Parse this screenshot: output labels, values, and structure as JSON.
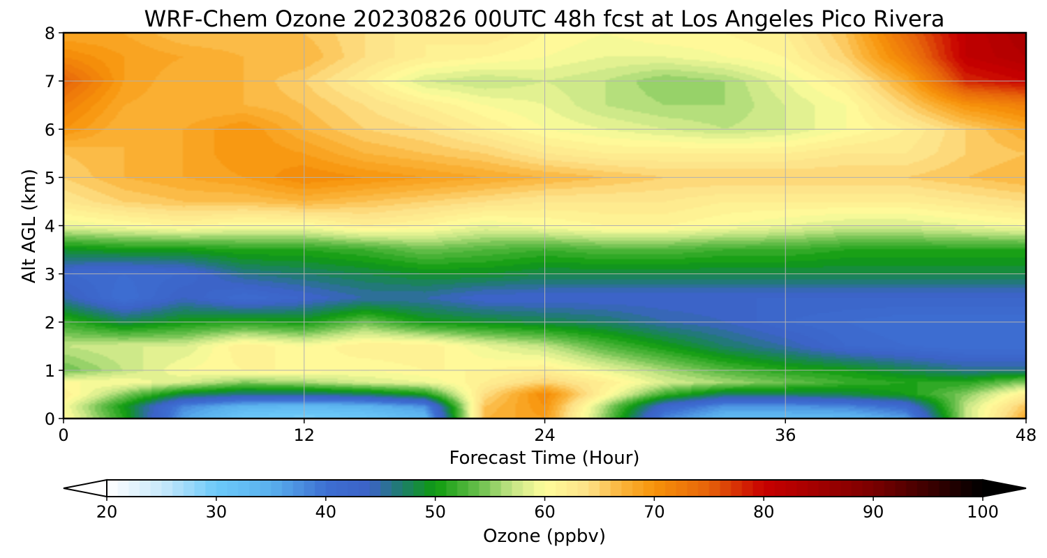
{
  "chart_data": {
    "type": "heatmap",
    "title": "WRF-Chem Ozone  20230826 00UTC 48h fcst at Los Angeles Pico Rivera",
    "xlabel": "Forecast Time (Hour)",
    "ylabel": "Alt AGL (km)",
    "xlim": [
      0,
      48
    ],
    "ylim": [
      0,
      8
    ],
    "x_ticks": [
      0,
      12,
      24,
      36,
      48
    ],
    "y_ticks": [
      0,
      1,
      2,
      3,
      4,
      5,
      6,
      7,
      8
    ],
    "grid": true,
    "x": [
      0,
      3,
      6,
      9,
      12,
      15,
      18,
      21,
      24,
      27,
      30,
      33,
      36,
      39,
      42,
      45,
      48
    ],
    "y": [
      0.0,
      0.25,
      0.5,
      0.75,
      1.0,
      1.5,
      2.0,
      2.5,
      3.0,
      3.5,
      4.0,
      4.5,
      5.0,
      5.5,
      6.0,
      6.5,
      7.0,
      7.5,
      8.0
    ],
    "z": [
      [
        61,
        51,
        36,
        30,
        29,
        30,
        33,
        67,
        69,
        55,
        38,
        33,
        33,
        33,
        36,
        57,
        68
      ],
      [
        60,
        50,
        38,
        34,
        33,
        34,
        37,
        66,
        70,
        56,
        42,
        37,
        37,
        38,
        41,
        57,
        66
      ],
      [
        62,
        55,
        48,
        46,
        46,
        47,
        50,
        64,
        71,
        61,
        52,
        47,
        47,
        48,
        50,
        55,
        62
      ],
      [
        60,
        60,
        58,
        55,
        56,
        58,
        59,
        62,
        65,
        62,
        58,
        56,
        54,
        52,
        51,
        51,
        55
      ],
      [
        54,
        57,
        60,
        61,
        61,
        60,
        61,
        61,
        62,
        59,
        56,
        53,
        51,
        50,
        48,
        46,
        46
      ],
      [
        57,
        58,
        58,
        62,
        60,
        62,
        62,
        59,
        57,
        53,
        50,
        47,
        45,
        42,
        41,
        40,
        40
      ],
      [
        52,
        48,
        50,
        51,
        50,
        54,
        50,
        49,
        48,
        47,
        45,
        44,
        42,
        41,
        40,
        40,
        40
      ],
      [
        45,
        40,
        44,
        41,
        43,
        45,
        45,
        43,
        43,
        43,
        43,
        43,
        43,
        43,
        43,
        43,
        43
      ],
      [
        42,
        41,
        42,
        46,
        47,
        48,
        49,
        49,
        48,
        48,
        48,
        48,
        48,
        48,
        48,
        48,
        48
      ],
      [
        49,
        50,
        50,
        51,
        51,
        52,
        54,
        53,
        52,
        53,
        53,
        52,
        52,
        51,
        51,
        51,
        51
      ],
      [
        59,
        60,
        61,
        60,
        60,
        62,
        61,
        59,
        60,
        61,
        61,
        60,
        59,
        58,
        58,
        59,
        60
      ],
      [
        63,
        65,
        66,
        66,
        67,
        66,
        65,
        64,
        63,
        63,
        63,
        62,
        62,
        62,
        62,
        63,
        64
      ],
      [
        65,
        67,
        68,
        69,
        71,
        70,
        69,
        68,
        67,
        66,
        65,
        65,
        65,
        65,
        65,
        66,
        67
      ],
      [
        66,
        67,
        68,
        70,
        69,
        67,
        66,
        65,
        63,
        62,
        62,
        62,
        62,
        63,
        63,
        65,
        66
      ],
      [
        70,
        67,
        68,
        70,
        67,
        65,
        64,
        62,
        60,
        59,
        58,
        57,
        58,
        60,
        62,
        65,
        68
      ],
      [
        72,
        68,
        67,
        67,
        66,
        64,
        62,
        60,
        59,
        57,
        56,
        56,
        58,
        60,
        65,
        70,
        72
      ],
      [
        75,
        69,
        67,
        67,
        65,
        62,
        58,
        57,
        58,
        57,
        55,
        56,
        59,
        62,
        68,
        78,
        80
      ],
      [
        71,
        69,
        68,
        67,
        67,
        64,
        62,
        61,
        60,
        59,
        59,
        60,
        61,
        65,
        72,
        81,
        83
      ],
      [
        68,
        68,
        66,
        66,
        66,
        64,
        62,
        63,
        61,
        60,
        61,
        61,
        62,
        66,
        74,
        81,
        84
      ]
    ],
    "colorbar": {
      "label": "Ozone  (ppbv)",
      "vmin": 20,
      "vmax": 100,
      "ticks": [
        20,
        30,
        40,
        50,
        60,
        70,
        80,
        90,
        100
      ],
      "extend": "both",
      "stops": [
        {
          "v": 20,
          "c": "#ffffff"
        },
        {
          "v": 25,
          "c": "#c9e9fb"
        },
        {
          "v": 30,
          "c": "#6cc9f9"
        },
        {
          "v": 35,
          "c": "#5ab0ee"
        },
        {
          "v": 40,
          "c": "#3d6fd2"
        },
        {
          "v": 44,
          "c": "#3c62c6"
        },
        {
          "v": 47,
          "c": "#1d7e6a"
        },
        {
          "v": 50,
          "c": "#0e9b0e"
        },
        {
          "v": 54,
          "c": "#69bf4d"
        },
        {
          "v": 57,
          "c": "#c4e585"
        },
        {
          "v": 60,
          "c": "#fffd9c"
        },
        {
          "v": 64,
          "c": "#fde087"
        },
        {
          "v": 67,
          "c": "#fbb43a"
        },
        {
          "v": 70,
          "c": "#f7930a"
        },
        {
          "v": 75,
          "c": "#e6620a"
        },
        {
          "v": 80,
          "c": "#c80000"
        },
        {
          "v": 90,
          "c": "#7a0000"
        },
        {
          "v": 100,
          "c": "#000000"
        }
      ]
    }
  }
}
